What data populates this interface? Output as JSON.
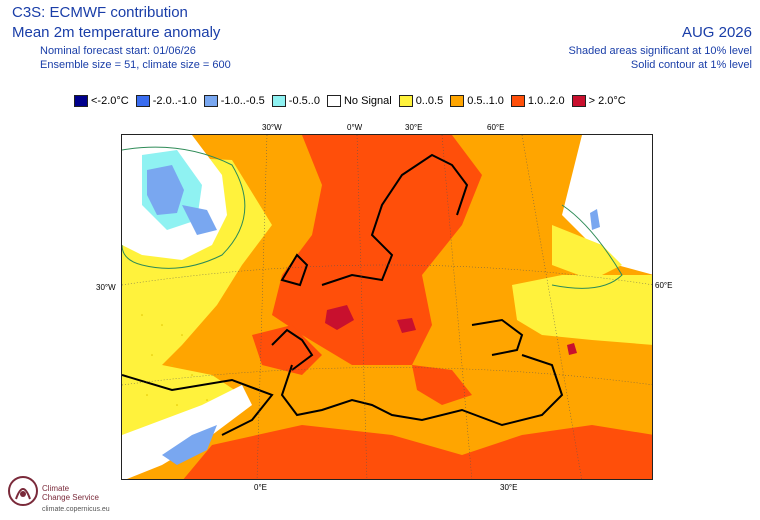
{
  "header": {
    "title": "C3S: ECMWF contribution",
    "subtitle": "Mean 2m temperature anomaly",
    "forecast_start": "Nominal forecast start: 01/06/26",
    "ensemble": "Ensemble size = 51, climate size = 600",
    "period": "AUG 2026",
    "note_shaded": "Shaded areas significant at 10% level",
    "note_contour": "Solid contour at 1% level"
  },
  "legend": [
    {
      "label": "<-2.0°C",
      "color": "#00008b"
    },
    {
      "label": "-2.0..-1.0",
      "color": "#3a6df0"
    },
    {
      "label": "-1.0..-0.5",
      "color": "#79a7f0"
    },
    {
      "label": "-0.5..0",
      "color": "#8ff2f2"
    },
    {
      "label": "No Signal",
      "color": "#ffffff"
    },
    {
      "label": "0..0.5",
      "color": "#fff23c"
    },
    {
      "label": "0.5..1.0",
      "color": "#ffa500"
    },
    {
      "label": "1.0..2.0",
      "color": "#ff4f0a"
    },
    {
      "label": "> 2.0°C",
      "color": "#c8102e"
    }
  ],
  "map_labels": {
    "lon_top_30w": "30°W",
    "lon_top_0": "0°W",
    "lon_top_30e": "30°E",
    "lon_top_60e": "60°E",
    "lat_left_30w": "30°W",
    "lat_right_60e": "60°E",
    "lon_bottom_0": "0°E",
    "lon_bottom_30e": "30°E"
  },
  "logo": {
    "line1": "Climate",
    "line2": "Change Service",
    "url": "climate.copernicus.eu"
  }
}
